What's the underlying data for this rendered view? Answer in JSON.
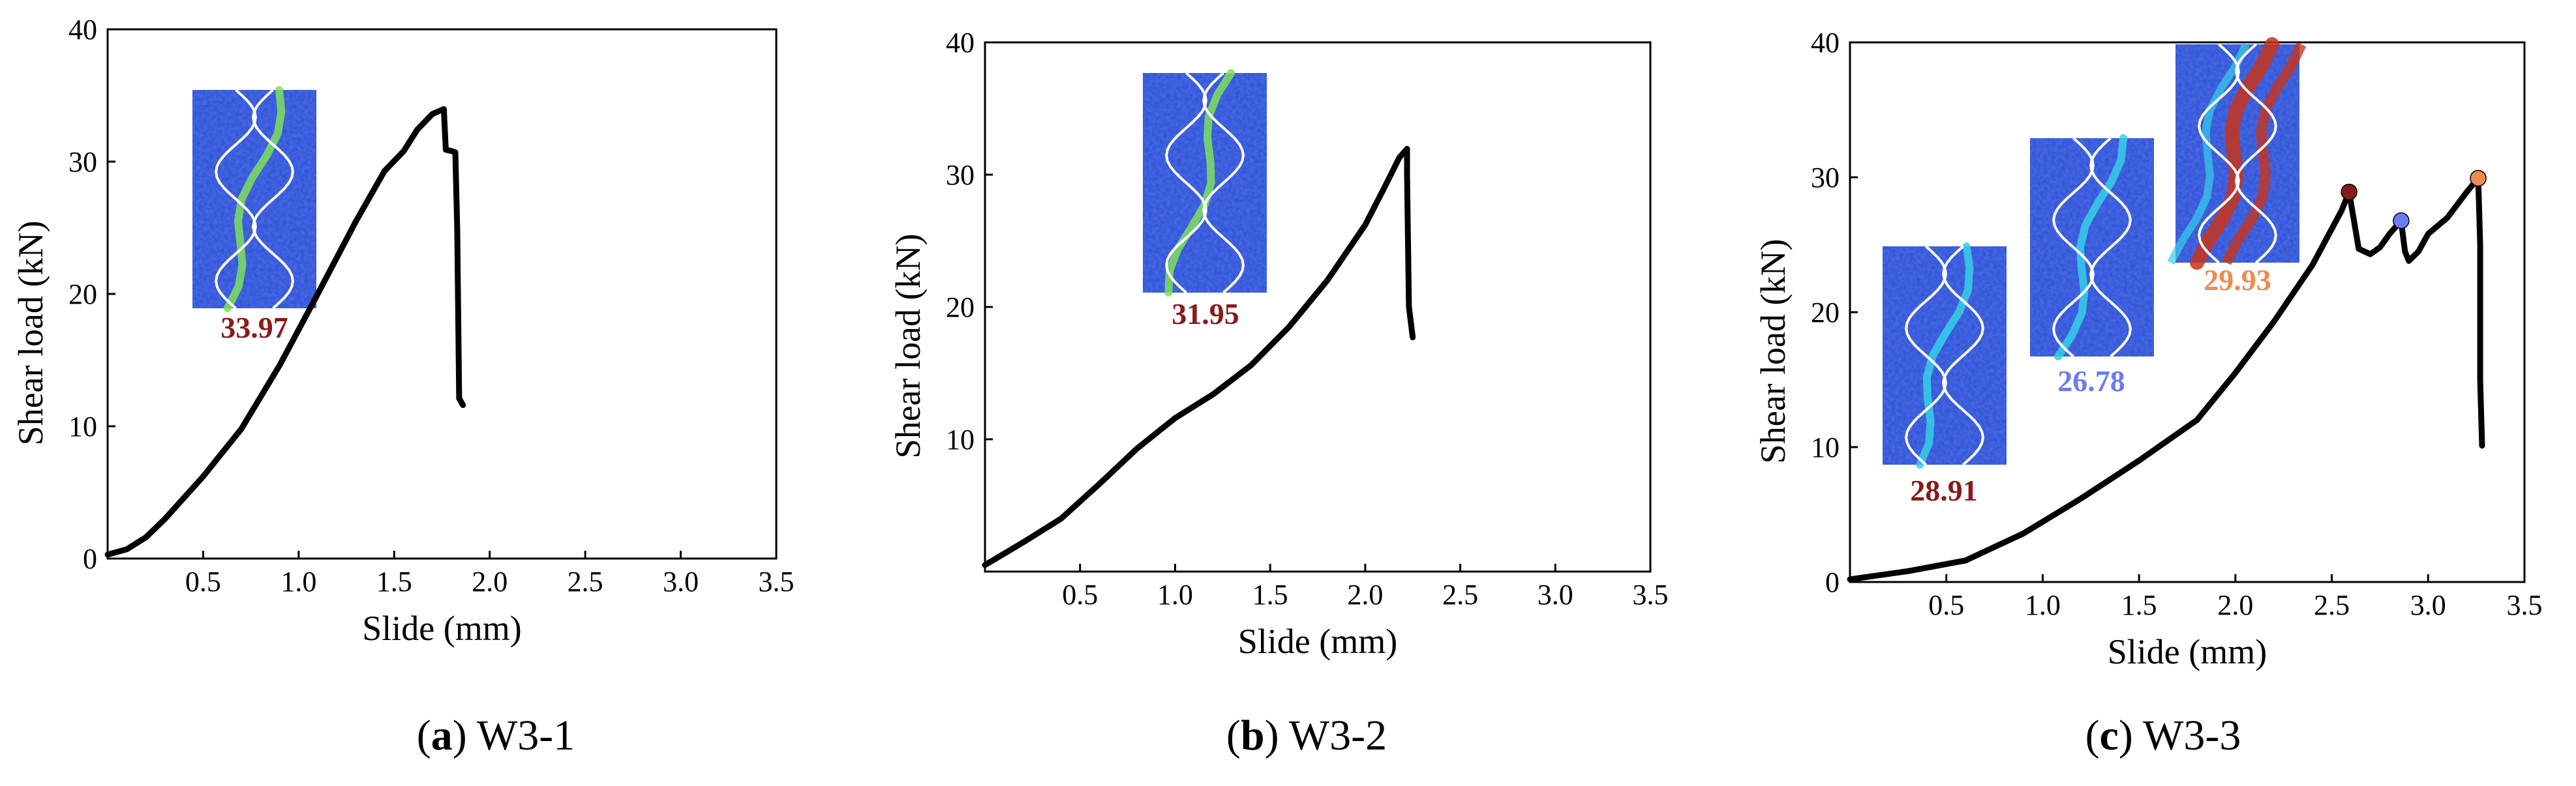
{
  "colors": {
    "dark_red": "#8b1a1a",
    "blue_label": "#6b7cf0",
    "orange_label": "#f08a50",
    "inset_blue": "#2d4fd8",
    "inset_cyan": "#35d0e8",
    "inset_green": "#7ee05a",
    "inset_red": "#c8341c",
    "inset_white": "#ffffff"
  },
  "icons": {
    "inset_image": "dic-strain-contour-with-white-sinusoidal-wire-lines",
    "marker": "filled-circle"
  },
  "chart_data": [
    {
      "id": "a",
      "type": "line",
      "caption_letter": "a",
      "caption_name": "W3-1",
      "xlabel": "Slide (mm)",
      "ylabel": "Shear load (kN)",
      "xlim": [
        0,
        3.5
      ],
      "ylim": [
        0,
        40
      ],
      "xticks": [
        0,
        0.5,
        1.0,
        1.5,
        2.0,
        2.5,
        3.0,
        3.5
      ],
      "xtick_labels": [
        "",
        "0.5",
        "1.0",
        "1.5",
        "2.0",
        "2.5",
        "3.0",
        "3.5"
      ],
      "yticks": [
        0,
        10,
        20,
        30,
        40
      ],
      "ytick_labels": [
        "0",
        "10",
        "20",
        "30",
        "40"
      ],
      "x": [
        0,
        0.1,
        0.2,
        0.3,
        0.5,
        0.7,
        0.9,
        1.1,
        1.3,
        1.45,
        1.55,
        1.62,
        1.7,
        1.76,
        1.77,
        1.8,
        1.82,
        1.83,
        1.84,
        1.86
      ],
      "y": [
        0.3,
        0.7,
        1.6,
        3.0,
        6.2,
        9.8,
        14.6,
        20.0,
        25.5,
        29.3,
        30.8,
        32.4,
        33.6,
        33.97,
        30.9,
        30.8,
        30.7,
        25.0,
        12.1,
        11.6
      ],
      "peaks": [
        {
          "label": "33.97",
          "x": 1.76,
          "y": 33.97,
          "color": "#8b1a1a",
          "marker": false
        }
      ]
    },
    {
      "id": "b",
      "type": "line",
      "caption_letter": "b",
      "caption_name": "W3-2",
      "xlabel": "Slide (mm)",
      "ylabel": "Shear load (kN)",
      "xlim": [
        0,
        3.5
      ],
      "ylim": [
        0,
        40
      ],
      "xticks": [
        0,
        0.5,
        1.0,
        1.5,
        2.0,
        2.5,
        3.0,
        3.5
      ],
      "xtick_labels": [
        "",
        "0.5",
        "1.0",
        "1.5",
        "2.0",
        "2.5",
        "3.0",
        "3.5"
      ],
      "yticks": [
        0,
        10,
        20,
        30,
        40
      ],
      "ytick_labels": [
        "",
        "10",
        "20",
        "30",
        "40"
      ],
      "x": [
        0,
        0.2,
        0.4,
        0.6,
        0.8,
        1.0,
        1.2,
        1.4,
        1.6,
        1.8,
        2.0,
        2.1,
        2.18,
        2.22,
        2.22,
        2.23,
        2.25
      ],
      "y": [
        0.5,
        2.2,
        4.0,
        6.6,
        9.3,
        11.6,
        13.4,
        15.6,
        18.5,
        22.0,
        26.2,
        29.0,
        31.3,
        31.95,
        30.0,
        20.0,
        17.7
      ],
      "peaks": [
        {
          "label": "31.95",
          "x": 2.22,
          "y": 31.95,
          "color": "#8b1a1a",
          "marker": false
        }
      ]
    },
    {
      "id": "c",
      "type": "line",
      "caption_letter": "c",
      "caption_name": "W3-3",
      "xlabel": "Slide (mm)",
      "ylabel": "Shear load (kN)",
      "xlim": [
        0,
        3.5
      ],
      "ylim": [
        0,
        40
      ],
      "xticks": [
        0,
        0.5,
        1.0,
        1.5,
        2.0,
        2.5,
        3.0,
        3.5
      ],
      "xtick_labels": [
        "",
        "0.5",
        "1.0",
        "1.5",
        "2.0",
        "2.5",
        "3.0",
        "3.5"
      ],
      "yticks": [
        0,
        10,
        20,
        30,
        40
      ],
      "ytick_labels": [
        "0",
        "10",
        "20",
        "30",
        "40"
      ],
      "x": [
        0,
        0.3,
        0.6,
        0.9,
        1.2,
        1.5,
        1.8,
        2.0,
        2.2,
        2.4,
        2.55,
        2.59,
        2.64,
        2.7,
        2.75,
        2.8,
        2.86,
        2.88,
        2.9,
        2.95,
        3.0,
        3.1,
        3.2,
        3.26,
        3.27,
        3.27,
        3.28
      ],
      "y": [
        0.2,
        0.8,
        1.6,
        3.6,
        6.2,
        9.0,
        12.0,
        15.5,
        19.3,
        23.5,
        27.5,
        28.91,
        24.7,
        24.3,
        24.8,
        25.8,
        26.78,
        24.5,
        23.8,
        24.5,
        25.8,
        27.0,
        28.9,
        29.93,
        25.0,
        15.0,
        10.1
      ],
      "peaks": [
        {
          "label": "28.91",
          "x": 2.59,
          "y": 28.91,
          "color": "#8b1a1a",
          "marker": true
        },
        {
          "label": "26.78",
          "x": 2.86,
          "y": 26.78,
          "color": "#6b7cf0",
          "marker": true
        },
        {
          "label": "29.93",
          "x": 3.26,
          "y": 29.93,
          "color": "#f08a50",
          "marker": true
        }
      ]
    }
  ]
}
